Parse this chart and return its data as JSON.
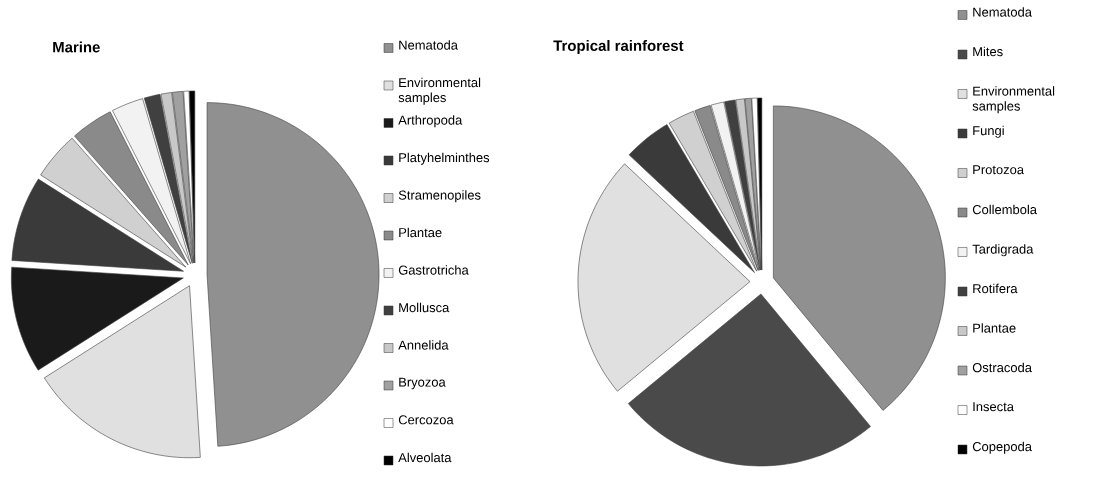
{
  "chart_data": [
    {
      "type": "pie",
      "title": "Marine",
      "legend": "right",
      "categories": [
        "Nematoda",
        "Environmental samples",
        "Arthropoda",
        "Platyhelminthes",
        "Stramenopiles",
        "Plantae",
        "Gastrotricha",
        "Mollusca",
        "Annelida",
        "Bryozoa",
        "Cercozoa",
        "Alveolata"
      ],
      "values": [
        49,
        17,
        10,
        8,
        4.5,
        4,
        3,
        1.5,
        1,
        1,
        0.5,
        0.5
      ],
      "colors": [
        "#909090",
        "#e0e0e0",
        "#1a1a1a",
        "#3a3a3a",
        "#d0d0d0",
        "#8a8a8a",
        "#f2f2f2",
        "#404040",
        "#c8c8c8",
        "#a0a0a0",
        "#ffffff",
        "#000000"
      ]
    },
    {
      "type": "pie",
      "title": "Tropical rainforest",
      "legend": "right",
      "categories": [
        "Nematoda",
        "Mites",
        "Environmental samples",
        "Fungi",
        "Protozoa",
        "Collembola",
        "Tardigrada",
        "Rotifera",
        "Plantae",
        "Ostracoda",
        "Insecta",
        "Copepoda"
      ],
      "values": [
        39,
        25,
        23,
        4.5,
        2.5,
        1.5,
        1.2,
        1,
        0.8,
        0.6,
        0.5,
        0.4
      ],
      "colors": [
        "#909090",
        "#4a4a4a",
        "#e0e0e0",
        "#3a3a3a",
        "#d0d0d0",
        "#8a8a8a",
        "#f2f2f2",
        "#404040",
        "#c8c8c8",
        "#a0a0a0",
        "#ffffff",
        "#000000"
      ]
    }
  ]
}
